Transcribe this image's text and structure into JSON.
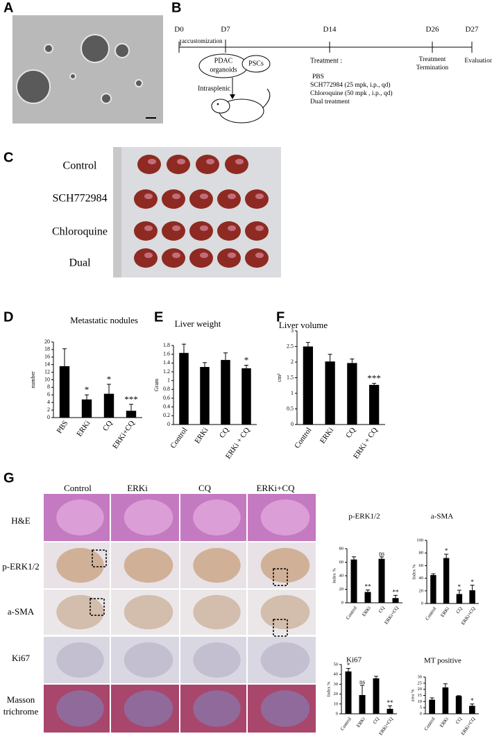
{
  "panel_labels": [
    "A",
    "B",
    "C",
    "D",
    "E",
    "F",
    "G"
  ],
  "timeline": {
    "days": [
      "D0",
      "D7",
      "D14",
      "D26",
      "D27"
    ],
    "period": "accustomization",
    "cells": [
      [
        "PDAC",
        "organoids"
      ],
      "PSCs"
    ],
    "route": "Intrasplenic",
    "treatment_title": "Treatment :",
    "treatments": [
      "PBS",
      "SCH772984 (25 mpk, i.p., qd)",
      "Chloroquine (50 mpk , i.p., qd)",
      "Dual treatment"
    ],
    "termination": [
      "Treatment",
      "Termination"
    ],
    "evaluation": "Evaluation"
  },
  "photo_groups": [
    "Control",
    "SCH772984",
    "Chloroquine",
    "Dual"
  ],
  "histology": {
    "columns": [
      "Control",
      "ERKi",
      "CQ",
      "ERKi+CQ"
    ],
    "rows": [
      "H&E",
      "p-ERK1/2",
      "a-SMA",
      "Ki67",
      [
        "Masson",
        "trichrome"
      ]
    ]
  },
  "chart_data": [
    {
      "type": "bar",
      "title": "Metastatic nodules",
      "y_label": "number",
      "categories": [
        "PBS",
        "ERKi",
        "CQ",
        "ERKi+CQ"
      ],
      "values": [
        13.6,
        4.8,
        6.3,
        1.8
      ],
      "errors": [
        4.6,
        1.2,
        2.5,
        1.7
      ],
      "annotations": [
        null,
        "*",
        "*",
        "***"
      ],
      "color": "#000000",
      "ylim": [
        0,
        20
      ],
      "yticks": [
        0,
        2,
        4,
        6,
        8,
        10,
        12,
        14,
        16,
        18,
        20
      ]
    },
    {
      "type": "bar",
      "title": "Liver weight",
      "y_label": "Gram",
      "categories": [
        "Control",
        "ERKi",
        "CQ",
        "ERKi + CQ"
      ],
      "values": [
        1.63,
        1.31,
        1.47,
        1.28
      ],
      "errors": [
        0.2,
        0.1,
        0.16,
        0.07
      ],
      "annotations": [
        null,
        null,
        null,
        "*"
      ],
      "color": "#000000",
      "ylim": [
        0,
        1.8
      ],
      "yticks": [
        0,
        0.2,
        0.4,
        0.6,
        0.8,
        1,
        1.2,
        1.4,
        1.6,
        1.8
      ]
    },
    {
      "type": "bar",
      "title": "Liver volume",
      "y_label": "cm³",
      "categories": [
        "Control",
        "ERKi",
        "CQ",
        "ERKi + CQ"
      ],
      "values": [
        2.5,
        2.02,
        1.97,
        1.27
      ],
      "errors": [
        0.13,
        0.23,
        0.13,
        0.05
      ],
      "annotations": [
        null,
        null,
        null,
        "***"
      ],
      "color": "#000000",
      "ylim": [
        0,
        3
      ],
      "yticks": [
        0,
        0.5,
        1,
        1.5,
        2,
        2.5,
        3
      ]
    },
    {
      "type": "bar",
      "title": "p-ERK1/2",
      "y_label": "Index %",
      "categories": [
        "Control",
        "ERKi",
        "CQ",
        "ERKi+CQ"
      ],
      "values": [
        64,
        16,
        65,
        7
      ],
      "errors": [
        4,
        3,
        3,
        4
      ],
      "annotations": [
        null,
        "**",
        "ns",
        "**"
      ],
      "color": "#000000",
      "ylim": [
        0,
        80
      ],
      "yticks": [
        0,
        20,
        40,
        60,
        80
      ]
    },
    {
      "type": "bar",
      "title": "a-SMA",
      "y_label": "Index %",
      "categories": [
        "Control",
        "ERKi",
        "CQ",
        "ERKi+CQ"
      ],
      "values": [
        45,
        72,
        15,
        21
      ],
      "errors": [
        2,
        6,
        6,
        8
      ],
      "annotations": [
        null,
        "*",
        "*",
        "*"
      ],
      "color": "#000000",
      "ylim": [
        0,
        100
      ],
      "yticks": [
        0,
        20,
        40,
        60,
        80,
        100
      ]
    },
    {
      "type": "bar",
      "title": "Ki67",
      "y_label": "Index %",
      "categories": [
        "Control",
        "ERKi",
        "CQ",
        "ERKi+CQ"
      ],
      "values": [
        43,
        19,
        36,
        5
      ],
      "errors": [
        3,
        10,
        2,
        3
      ],
      "annotations": [
        "*",
        "ns",
        null,
        "**"
      ],
      "color": "#000000",
      "ylim": [
        0,
        50
      ],
      "yticks": [
        0,
        10,
        20,
        30,
        40,
        50
      ]
    },
    {
      "type": "bar",
      "title": "MT positive",
      "y_label": "area %",
      "categories": [
        "Control",
        "ERKi",
        "CQ",
        "ERKi+CQ"
      ],
      "values": [
        11.5,
        21.5,
        14.5,
        6.5
      ],
      "errors": [
        1.5,
        3,
        0.3,
        1.5
      ],
      "annotations": [
        null,
        null,
        null,
        "*"
      ],
      "color": "#000000",
      "ylim": [
        0,
        30
      ],
      "yticks": [
        0,
        5,
        10,
        15,
        20,
        25,
        30
      ]
    }
  ]
}
